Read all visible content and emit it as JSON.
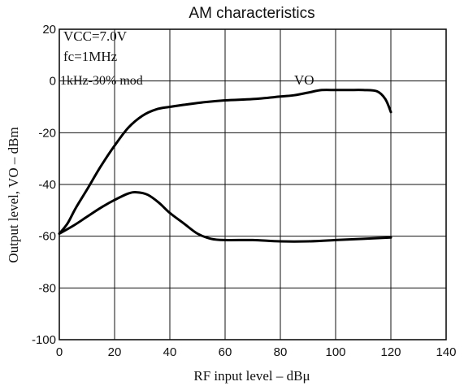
{
  "chart_data": {
    "type": "line",
    "title": "AM characteristics",
    "xlabel": "RF input level – dBμ",
    "ylabel": "Output level, VO – dBm",
    "xlim": [
      0,
      140
    ],
    "ylim": [
      -100,
      20
    ],
    "x_ticks": [
      "0",
      "20",
      "40",
      "60",
      "80",
      "100",
      "120",
      "140"
    ],
    "y_ticks": [
      "20",
      "0",
      "-20",
      "-40",
      "-60",
      "-80",
      "-100"
    ],
    "grid": true,
    "annotations": {
      "vcc": "VCC=7.0V",
      "fc": "fc=1MHz",
      "mod": "1kHz-30% mod",
      "series_label": "VO"
    },
    "series": [
      {
        "name": "VO",
        "x": [
          0,
          3,
          6,
          10,
          15,
          20,
          25,
          30,
          35,
          40,
          50,
          60,
          70,
          80,
          85,
          90,
          95,
          100,
          105,
          110,
          115,
          118,
          120
        ],
        "y": [
          -59,
          -55,
          -49,
          -42,
          -33,
          -25,
          -18,
          -13.5,
          -11,
          -10,
          -8.5,
          -7.5,
          -7,
          -6,
          -5.5,
          -4.5,
          -3.5,
          -3.5,
          -3.5,
          -3.5,
          -4,
          -7,
          -12
        ]
      },
      {
        "name": "",
        "x": [
          0,
          5,
          10,
          15,
          20,
          25,
          28,
          32,
          36,
          40,
          45,
          50,
          55,
          60,
          70,
          80,
          90,
          100,
          110,
          120
        ],
        "y": [
          -59,
          -56,
          -52.5,
          -49,
          -46,
          -43.5,
          -43,
          -44,
          -47,
          -51,
          -55,
          -59,
          -61,
          -61.5,
          -61.5,
          -62,
          -62,
          -61.5,
          -61,
          -60.5
        ]
      }
    ]
  }
}
